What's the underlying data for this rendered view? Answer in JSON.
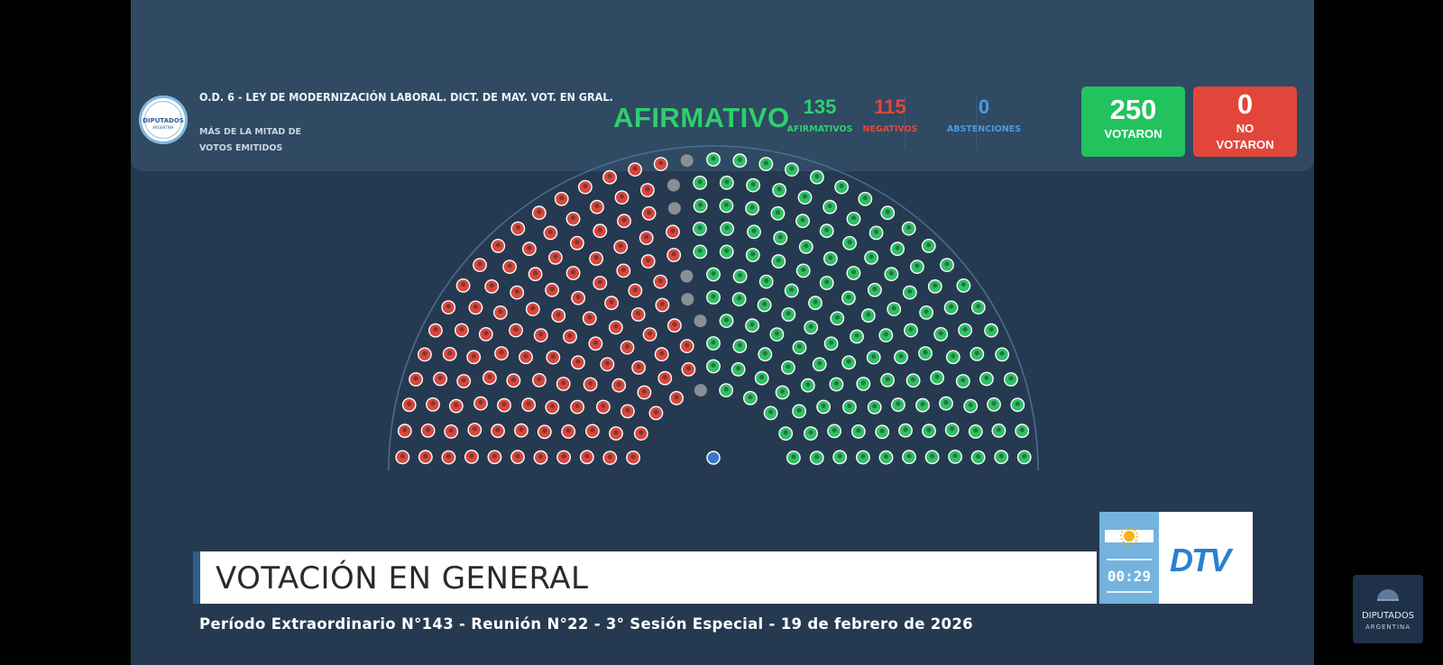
{
  "header": {
    "seal": {
      "line1": "DIPUTADOS",
      "line2": "ARGENTINA"
    },
    "vote_title": "O.D. 6 - LEY DE MODERNIZACIÓN LABORAL. DICT. DE MAY. VOT. EN GRAL.",
    "majority_line1": "MÁS DE LA MITAD DE",
    "majority_line2": "VOTOS EMITIDOS",
    "result": "AFIRMATIVO",
    "afirmativos": {
      "value": "135",
      "label": "AFIRMATIVOS",
      "color": "#2fcf6d"
    },
    "negativos": {
      "value": "115",
      "label": "NEGATIVOS",
      "color": "#e5463b"
    },
    "abstenciones": {
      "value": "0",
      "label": "ABSTENCIONES",
      "color": "#4a9be3"
    },
    "votaron": {
      "value": "250",
      "label": "VOTARON",
      "color": "#22c35e"
    },
    "no_votaron": {
      "value": "0",
      "label_line1": "NO",
      "label_line2": "VOTARON",
      "color": "#e2463b"
    }
  },
  "hemicycle": {
    "seat_counts": {
      "afirmativo": 135,
      "negativo": 115,
      "ausente": 7
    },
    "colors": {
      "afirmativo": "#2fbf66",
      "negativo": "#d9473d",
      "ausente": "#8a8f96",
      "presidente": "#3b78c9"
    }
  },
  "lower_third": {
    "title": "VOTACIÓN EN GENERAL",
    "timer": "00:29",
    "channel_logo": "DTV",
    "session_line": "Período Extraordinario N°143 - Reunión N°22 - 3° Sesión Especial - 19 de febrero de 2026"
  },
  "corner_logo": {
    "line1": "DIPUTADOS",
    "line2": "ARGENTINA"
  }
}
